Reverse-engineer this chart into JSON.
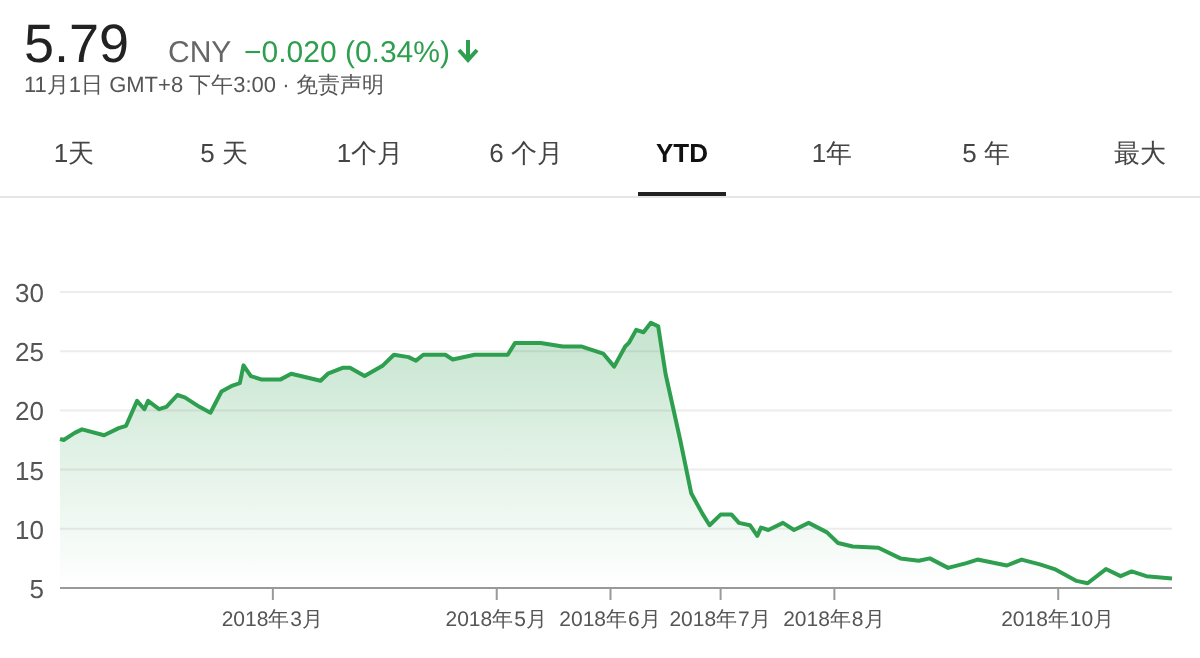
{
  "chart_data": {
    "type": "area",
    "title": "5.79",
    "subtitle": "11月1日 GMT+8 下午3:00 · 免责声明",
    "annotations": [
      "CNY",
      "−0.020 (0.34%)",
      "1天",
      "5 天",
      "1个月",
      "6 个月",
      "YTD",
      "1年",
      "5 年",
      "最大"
    ],
    "x": [
      "2018-01-02",
      "2018-01-03",
      "2018-01-06",
      "2018-01-08",
      "2018-01-14",
      "2018-01-18",
      "2018-01-20",
      "2018-01-23",
      "2018-01-25",
      "2018-01-26",
      "2018-01-29",
      "2018-01-31",
      "2018-02-03",
      "2018-02-05",
      "2018-02-09",
      "2018-02-12",
      "2018-02-15",
      "2018-02-18",
      "2018-02-20",
      "2018-02-21",
      "2018-02-23",
      "2018-02-26",
      "2018-03-03",
      "2018-03-06",
      "2018-03-14",
      "2018-03-16",
      "2018-03-20",
      "2018-03-22",
      "2018-03-26",
      "2018-03-31",
      "2018-04-03",
      "2018-04-07",
      "2018-04-09",
      "2018-04-11",
      "2018-04-17",
      "2018-04-19",
      "2018-04-25",
      "2018-05-04",
      "2018-05-06",
      "2018-05-13",
      "2018-05-19",
      "2018-05-24",
      "2018-05-30",
      "2018-06-02",
      "2018-06-05",
      "2018-06-06",
      "2018-06-08",
      "2018-06-10",
      "2018-06-12",
      "2018-06-14",
      "2018-06-16",
      "2018-06-20",
      "2018-06-23",
      "2018-06-26",
      "2018-06-28",
      "2018-07-01",
      "2018-07-04",
      "2018-07-06",
      "2018-07-09",
      "2018-07-11",
      "2018-07-12",
      "2018-07-14",
      "2018-07-18",
      "2018-07-21",
      "2018-07-25",
      "2018-07-30",
      "2018-08-02",
      "2018-08-06",
      "2018-08-13",
      "2018-08-19",
      "2018-08-24",
      "2018-08-27",
      "2018-09-01",
      "2018-09-06",
      "2018-09-09",
      "2018-09-17",
      "2018-09-21",
      "2018-09-26",
      "2018-09-30",
      "2018-10-06",
      "2018-10-09",
      "2018-10-14",
      "2018-10-18",
      "2018-10-21",
      "2018-10-25",
      "2018-11-01"
    ],
    "series": [
      {
        "color": "#2e9e4f",
        "values": [
          17.6,
          17.5,
          18.1,
          18.4,
          17.9,
          18.5,
          18.7,
          20.8,
          20.1,
          20.8,
          20.1,
          20.3,
          21.3,
          21.1,
          20.3,
          19.8,
          21.6,
          22.1,
          22.3,
          23.8,
          22.9,
          22.6,
          22.6,
          23.1,
          22.5,
          23.1,
          23.6,
          23.6,
          22.9,
          23.8,
          24.7,
          24.5,
          24.2,
          24.7,
          24.7,
          24.3,
          24.7,
          24.7,
          25.7,
          25.7,
          25.4,
          25.4,
          24.8,
          23.7,
          25.4,
          25.7,
          26.8,
          26.6,
          27.4,
          27.1,
          23.1,
          17.5,
          13.0,
          11.3,
          10.3,
          11.2,
          11.2,
          10.5,
          10.3,
          9.4,
          10.1,
          9.9,
          10.5,
          9.9,
          10.5,
          9.7,
          8.8,
          8.5,
          8.4,
          7.5,
          7.3,
          7.5,
          6.7,
          7.1,
          7.4,
          6.9,
          7.4,
          7.0,
          6.6,
          5.6,
          5.4,
          6.6,
          6.0,
          6.4,
          6.0,
          5.8
        ]
      }
    ],
    "xlim": [
      "2018-01-02",
      "2018-11-01"
    ],
    "xticks": [
      {
        "value": "2018-03-01",
        "label": "2018年3月"
      },
      {
        "value": "2018-05-01",
        "label": "2018年5月"
      },
      {
        "value": "2018-06-01",
        "label": "2018年6月"
      },
      {
        "value": "2018-07-01",
        "label": "2018年7月"
      },
      {
        "value": "2018-08-01",
        "label": "2018年8月"
      },
      {
        "value": "2018-10-01",
        "label": "2018年10月"
      }
    ],
    "ylim": [
      5,
      30
    ],
    "yticks": [
      5,
      10,
      15,
      20,
      25,
      30
    ],
    "grid": "y",
    "marker": "none",
    "line_style": "solid"
  }
}
